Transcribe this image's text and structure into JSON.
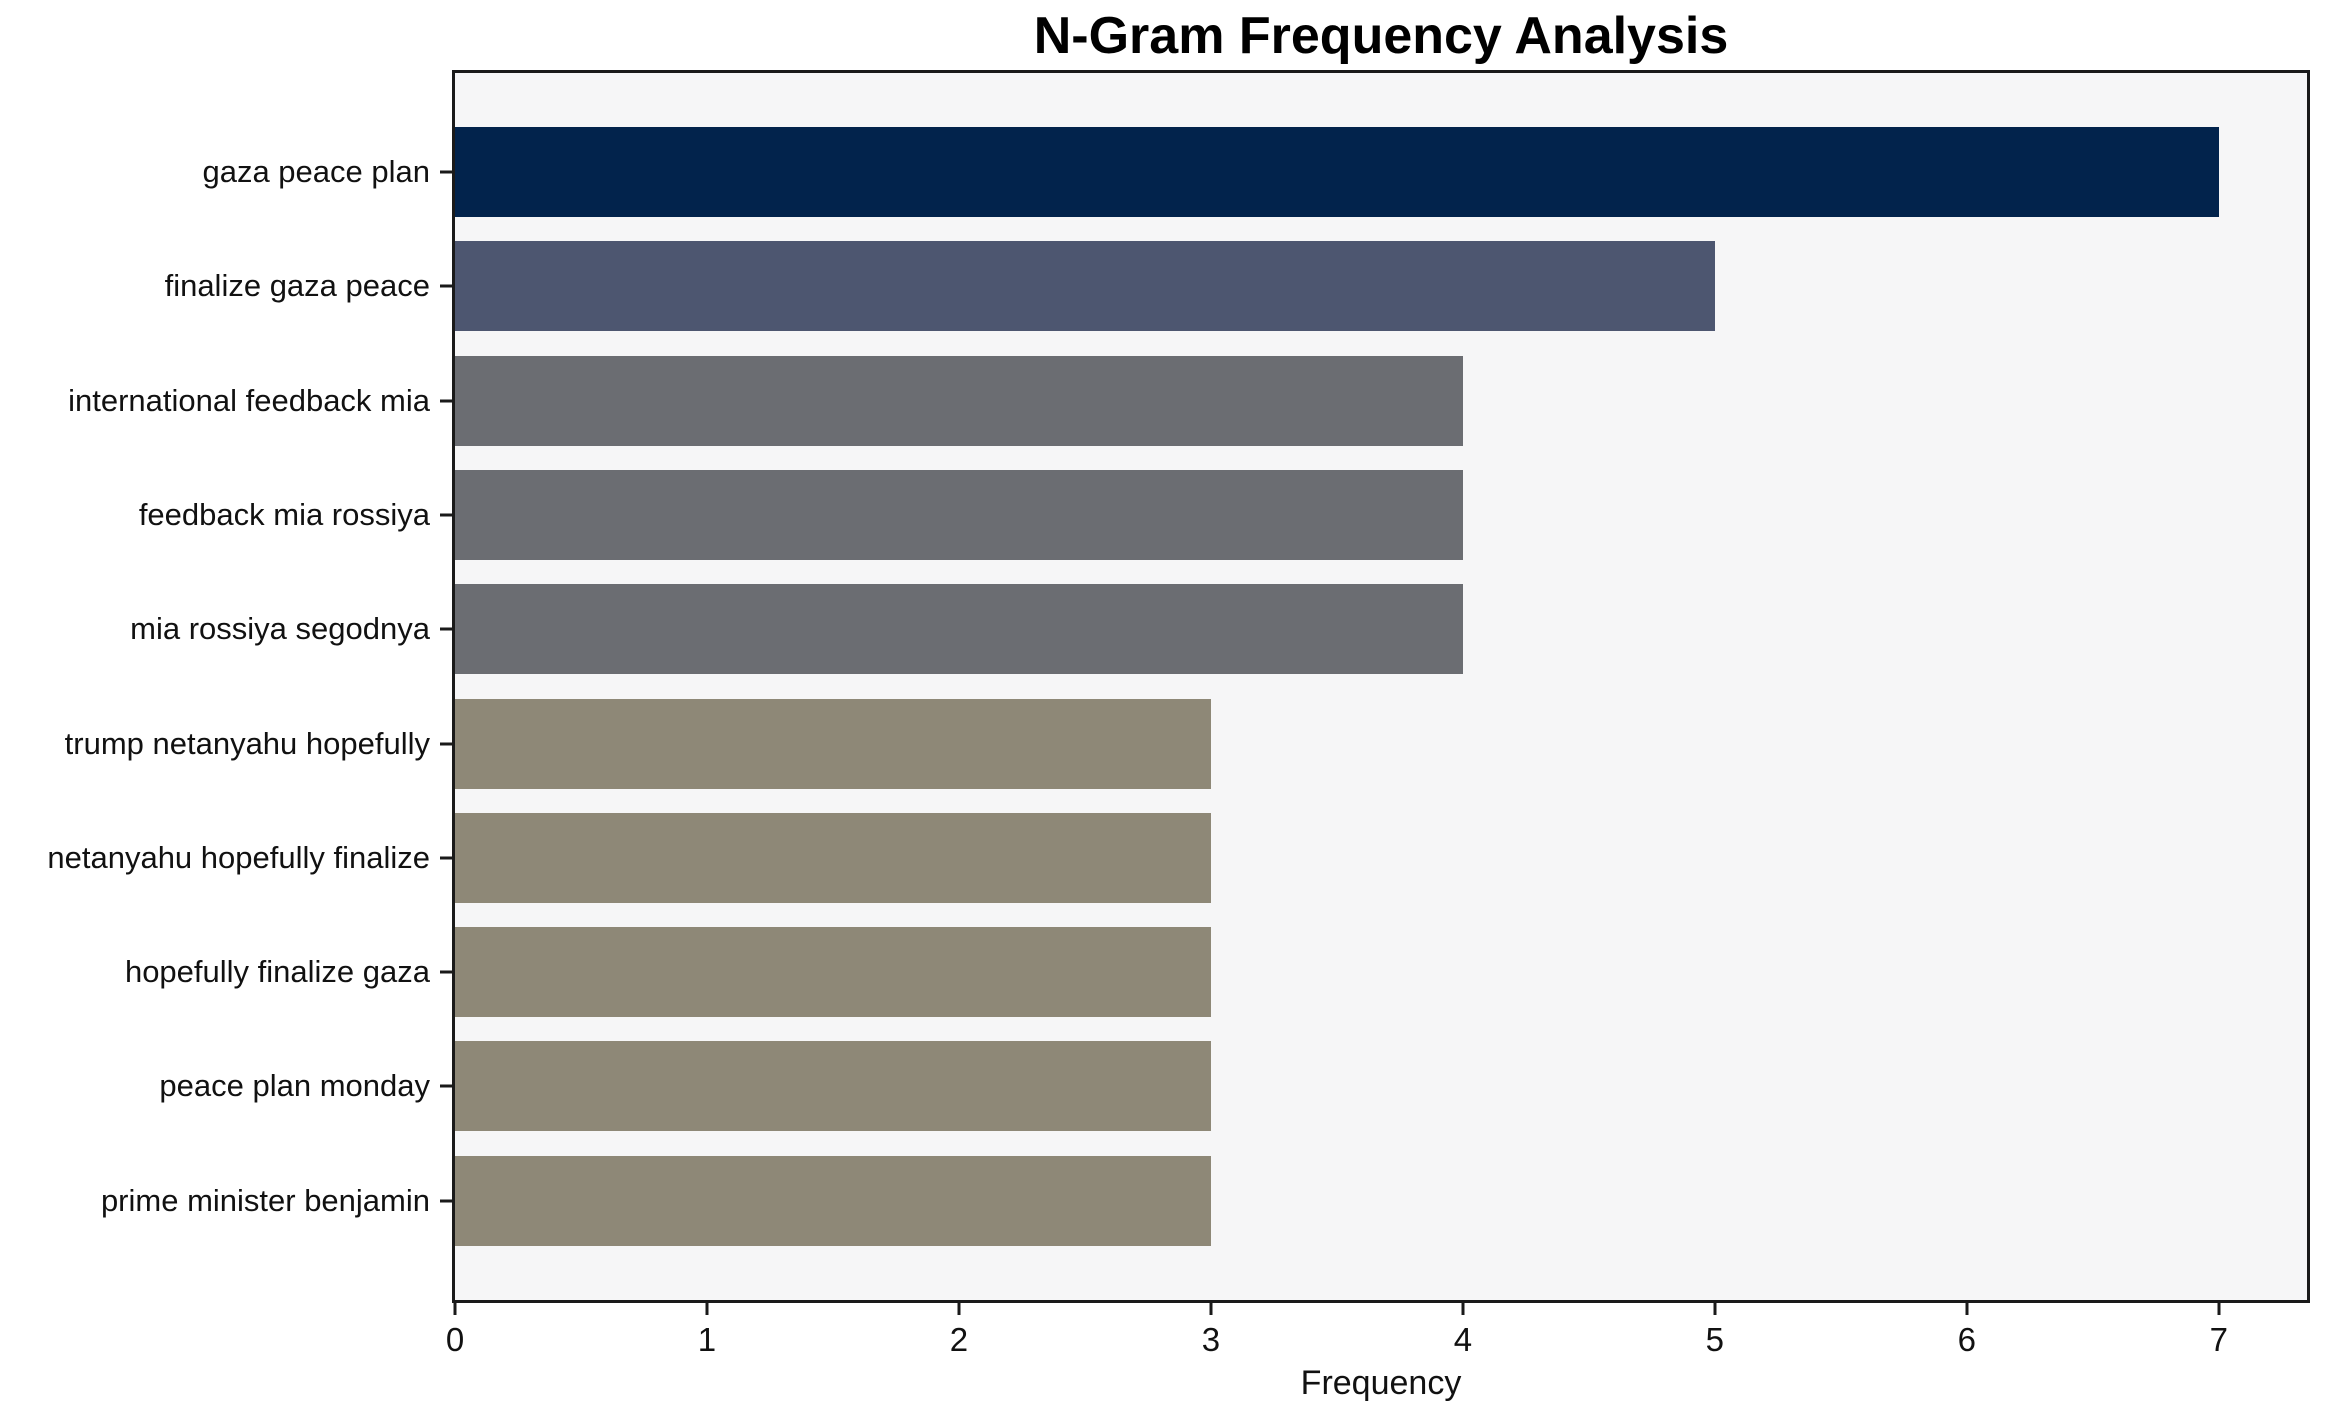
{
  "chart_data": {
    "type": "bar",
    "orientation": "horizontal",
    "title": "N-Gram Frequency Analysis",
    "xlabel": "Frequency",
    "ylabel": "",
    "categories": [
      "gaza peace plan",
      "finalize gaza peace",
      "international feedback mia",
      "feedback mia rossiya",
      "mia rossiya segodnya",
      "trump netanyahu hopefully",
      "netanyahu hopefully finalize",
      "hopefully finalize gaza",
      "peace plan monday",
      "prime minister benjamin"
    ],
    "values": [
      7,
      5,
      4,
      4,
      4,
      3,
      3,
      3,
      3,
      3
    ],
    "bar_colors": [
      "#02234c",
      "#4d5670",
      "#6b6d72",
      "#6b6d72",
      "#6b6d72",
      "#8e8877",
      "#8e8877",
      "#8e8877",
      "#8e8877",
      "#8e8877"
    ],
    "xticks": [
      0,
      1,
      2,
      3,
      4,
      5,
      6,
      7
    ],
    "xlim": [
      0,
      7.35
    ],
    "grid": false,
    "legend": false,
    "plot_background": "#f6f6f7",
    "figure_background": "#ffffff",
    "frame_color": "#1a1a1a",
    "text_color": "#111111"
  }
}
